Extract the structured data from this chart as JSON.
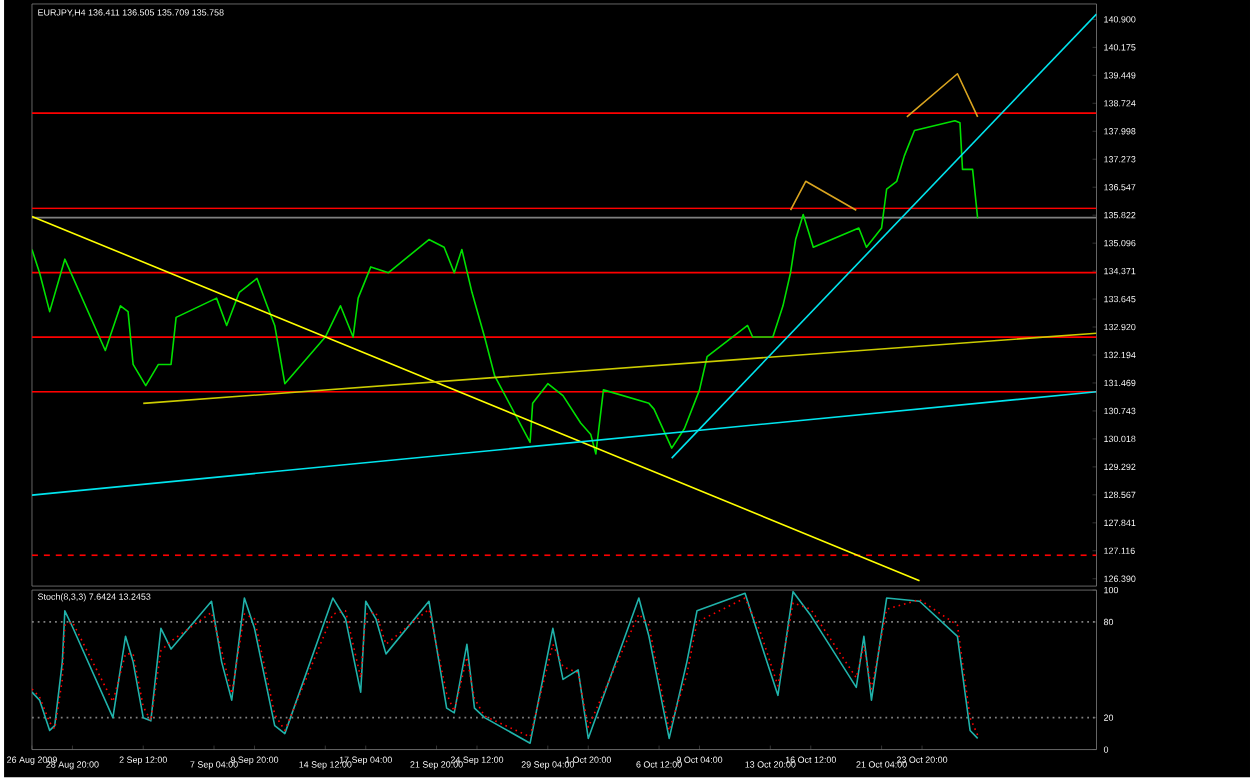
{
  "chart_data": [
    {
      "type": "line",
      "title": "EURJPY,H4 136.411 136.505 135.709 135.758",
      "xlim": [
        "2009-08-26T04:00",
        "2009-11-04T08:00"
      ],
      "ylim": [
        126.2,
        141.3
      ],
      "tick_labels": "y",
      "yticks": [
        {
          "value": 126.39,
          "label": "126.390"
        },
        {
          "value": 127.116,
          "label": "127.116"
        },
        {
          "value": 127.841,
          "label": "127.841"
        },
        {
          "value": 128.567,
          "label": "128.567"
        },
        {
          "value": 129.292,
          "label": "129.292"
        },
        {
          "value": 130.018,
          "label": "130.018"
        },
        {
          "value": 130.743,
          "label": "130.743"
        },
        {
          "value": 131.469,
          "label": "131.469"
        },
        {
          "value": 132.194,
          "label": "132.194"
        },
        {
          "value": 132.92,
          "label": "132.920"
        },
        {
          "value": 133.645,
          "label": "133.645"
        },
        {
          "value": 134.371,
          "label": "134.371"
        },
        {
          "value": 135.096,
          "label": "135.096"
        },
        {
          "value": 135.822,
          "label": "135.822"
        },
        {
          "value": 136.547,
          "label": "136.547"
        },
        {
          "value": 137.273,
          "label": "137.273"
        },
        {
          "value": 137.998,
          "label": "137.998"
        },
        {
          "value": 138.724,
          "label": "138.724"
        },
        {
          "value": 139.449,
          "label": "139.449"
        },
        {
          "value": 140.175,
          "label": "140.175"
        },
        {
          "value": 140.9,
          "label": "140.900"
        }
      ],
      "ref_lines": [
        {
          "axis": "y",
          "value": 138.47,
          "color": "#ff0000"
        },
        {
          "axis": "y",
          "value": 136.0,
          "color": "#ff0000"
        },
        {
          "axis": "y",
          "value": 134.33,
          "color": "#ff0000"
        },
        {
          "axis": "y",
          "value": 132.66,
          "color": "#ff0000"
        },
        {
          "axis": "y",
          "value": 131.24,
          "color": "#ff0000"
        },
        {
          "axis": "y",
          "value": 127.0,
          "color": "#ff0000",
          "line_style": "dashed"
        },
        {
          "axis": "y",
          "value": 135.76,
          "color": "#808080"
        }
      ],
      "series": [
        {
          "color": "#00e000",
          "x": [
            "2009-08-26T04:00",
            "2009-08-26T16:00",
            "2009-08-27T08:00",
            "2009-08-28T08:00",
            "2009-08-31T00:00",
            "2009-09-01T00:00",
            "2009-09-01T12:00",
            "2009-09-01T20:00",
            "2009-09-02T16:00",
            "2009-09-03T12:00",
            "2009-09-04T08:00",
            "2009-09-04T16:00",
            "2009-09-07T08:00",
            "2009-09-08T00:00",
            "2009-09-08T20:00",
            "2009-09-10T00:00",
            "2009-09-10T16:00",
            "2009-09-11T04:00",
            "2009-09-11T20:00",
            "2009-09-14T12:00",
            "2009-09-15T12:00",
            "2009-09-16T08:00",
            "2009-09-16T16:00",
            "2009-09-17T12:00",
            "2009-09-18T16:00",
            "2009-09-21T08:00",
            "2009-09-22T08:00",
            "2009-09-23T00:00",
            "2009-09-23T12:00",
            "2009-09-24T04:00",
            "2009-09-25T00:00",
            "2009-09-25T16:00",
            "2009-09-28T00:00",
            "2009-09-28T04:00",
            "2009-09-29T04:00",
            "2009-09-30T04:00",
            "2009-10-01T08:00",
            "2009-10-02T00:00",
            "2009-10-02T08:00",
            "2009-10-02T20:00",
            "2009-10-05T20:00",
            "2009-10-06T04:00",
            "2009-10-07T08:00",
            "2009-10-08T04:00",
            "2009-10-09T04:00",
            "2009-10-09T16:00",
            "2009-10-12T08:00",
            "2009-10-12T16:00",
            "2009-10-14T00:00",
            "2009-10-14T16:00",
            "2009-10-15T04:00",
            "2009-10-15T12:00",
            "2009-10-16T00:00",
            "2009-10-16T16:00",
            "2009-10-19T16:00",
            "2009-10-20T04:00",
            "2009-10-21T04:00",
            "2009-10-21T12:00",
            "2009-10-22T04:00",
            "2009-10-22T16:00",
            "2009-10-23T08:00",
            "2009-10-26T00:00",
            "2009-10-26T08:00",
            "2009-10-26T12:00",
            "2009-10-27T04:00",
            "2009-10-27T12:00"
          ],
          "values": [
            134.93,
            134.33,
            133.32,
            134.68,
            132.31,
            133.47,
            133.32,
            131.95,
            131.4,
            131.95,
            131.95,
            133.17,
            133.67,
            132.96,
            133.82,
            134.18,
            133.47,
            132.96,
            131.45,
            132.66,
            133.47,
            132.66,
            133.67,
            134.48,
            134.33,
            135.19,
            134.99,
            134.33,
            134.93,
            133.82,
            132.66,
            131.65,
            129.93,
            130.94,
            131.45,
            131.14,
            130.43,
            130.13,
            129.63,
            131.29,
            130.94,
            130.79,
            129.78,
            130.28,
            131.29,
            132.15,
            132.96,
            132.66,
            132.66,
            133.47,
            134.33,
            135.19,
            135.84,
            134.99,
            135.49,
            134.99,
            135.49,
            136.5,
            136.7,
            137.36,
            138.02,
            138.27,
            138.22,
            137.01,
            137.01,
            135.74
          ]
        },
        {
          "color": "#ffff00",
          "x": [
            "2009-08-26T04:00",
            "2009-10-23T16:00"
          ],
          "values": [
            135.79,
            126.34
          ]
        },
        {
          "color": "#cccc00",
          "x": [
            "2009-09-02T12:00",
            "2009-11-04T08:00"
          ],
          "values": [
            130.94,
            132.76
          ]
        },
        {
          "color": "#00e5ee",
          "x": [
            "2009-08-26T04:00",
            "2009-11-04T08:00"
          ],
          "values": [
            128.56,
            131.24
          ]
        },
        {
          "color": "#00e5ee",
          "x": [
            "2009-10-07T08:00",
            "2009-11-04T08:00"
          ],
          "values": [
            129.52,
            141.04
          ]
        },
        {
          "color": "#daa520",
          "x": [
            "2009-10-15T04:00",
            "2009-10-16T04:00",
            "2009-10-19T12:00"
          ],
          "values": [
            135.95,
            136.7,
            135.95
          ]
        },
        {
          "color": "#daa520",
          "x": [
            "2009-10-22T20:00",
            "2009-10-26T04:00",
            "2009-10-27T12:00"
          ],
          "values": [
            138.37,
            139.49,
            138.37
          ]
        }
      ]
    },
    {
      "type": "line",
      "title": "Stoch(8,3,3) 7.6424 13.2453",
      "xlim": [
        "2009-08-26T04:00",
        "2009-11-04T08:00"
      ],
      "ylim": [
        0,
        100
      ],
      "yticks": [
        0,
        20,
        80,
        100
      ],
      "xticks": [
        {
          "value": "2009-08-26T04:00",
          "label": "26 Aug 2009"
        },
        {
          "value": "2009-08-28T20:00",
          "label": "28 Aug 20:00"
        },
        {
          "value": "2009-09-02T12:00",
          "label": "2 Sep 12:00"
        },
        {
          "value": "2009-09-07T04:00",
          "label": "7 Sep 04:00"
        },
        {
          "value": "2009-09-09T20:00",
          "label": "9 Sep 20:00"
        },
        {
          "value": "2009-09-14T12:00",
          "label": "14 Sep 12:00"
        },
        {
          "value": "2009-09-17T04:00",
          "label": "17 Sep 04:00"
        },
        {
          "value": "2009-09-21T20:00",
          "label": "21 Sep 20:00"
        },
        {
          "value": "2009-09-24T12:00",
          "label": "24 Sep 12:00"
        },
        {
          "value": "2009-09-29T04:00",
          "label": "29 Sep 04:00"
        },
        {
          "value": "2009-10-01T20:00",
          "label": "1 Oct 20:00"
        },
        {
          "value": "2009-10-06T12:00",
          "label": "6 Oct 12:00"
        },
        {
          "value": "2009-10-09T04:00",
          "label": "9 Oct 04:00"
        },
        {
          "value": "2009-10-13T20:00",
          "label": "13 Oct 20:00"
        },
        {
          "value": "2009-10-16T12:00",
          "label": "16 Oct 12:00"
        },
        {
          "value": "2009-10-21T04:00",
          "label": "21 Oct 04:00"
        },
        {
          "value": "2009-10-23T20:00",
          "label": "23 Oct 20:00"
        }
      ],
      "ref_lines": [
        {
          "axis": "y",
          "value": 20,
          "color": "#808080",
          "line_style": "dotted"
        },
        {
          "axis": "y",
          "value": 80,
          "color": "#808080",
          "line_style": "dotted"
        }
      ],
      "series": [
        {
          "color": "#20b2aa",
          "x": [
            "2009-08-26T04:00",
            "2009-08-26T16:00",
            "2009-08-27T08:00",
            "2009-08-27T16:00",
            "2009-08-28T04:00",
            "2009-08-28T08:00",
            "2009-08-28T20:00",
            "2009-08-31T12:00",
            "2009-09-01T08:00",
            "2009-09-01T20:00",
            "2009-09-02T12:00",
            "2009-09-03T00:00",
            "2009-09-03T16:00",
            "2009-09-04T08:00",
            "2009-09-07T00:00",
            "2009-09-07T16:00",
            "2009-09-08T08:00",
            "2009-09-09T04:00",
            "2009-09-09T20:00",
            "2009-09-11T04:00",
            "2009-09-11T20:00",
            "2009-09-15T00:00",
            "2009-09-15T20:00",
            "2009-09-16T20:00",
            "2009-09-17T04:00",
            "2009-09-17T20:00",
            "2009-09-18T12:00",
            "2009-09-21T08:00",
            "2009-09-22T12:00",
            "2009-09-23T00:00",
            "2009-09-23T20:00",
            "2009-09-24T08:00",
            "2009-09-25T00:00",
            "2009-09-28T00:00",
            "2009-09-29T12:00",
            "2009-09-30T04:00",
            "2009-10-01T04:00",
            "2009-10-01T20:00",
            "2009-10-05T04:00",
            "2009-10-05T20:00",
            "2009-10-06T12:00",
            "2009-10-07T04:00",
            "2009-10-08T08:00",
            "2009-10-09T00:00",
            "2009-10-12T04:00",
            "2009-10-13T04:00",
            "2009-10-14T08:00",
            "2009-10-15T08:00",
            "2009-10-16T12:00",
            "2009-10-19T12:00",
            "2009-10-20T00:00",
            "2009-10-20T12:00",
            "2009-10-21T12:00",
            "2009-10-23T16:00",
            "2009-10-26T04:00",
            "2009-10-27T00:00",
            "2009-10-27T12:00"
          ],
          "values": [
            36,
            31,
            12,
            15,
            55,
            87,
            77,
            20,
            71,
            55,
            20,
            18,
            76,
            63,
            93,
            55,
            31,
            95,
            76,
            15,
            10,
            95,
            82,
            36,
            93,
            82,
            60,
            93,
            26,
            23,
            66,
            26,
            20,
            4,
            76,
            44,
            50,
            7,
            95,
            71,
            39,
            7,
            55,
            87,
            98,
            68,
            34,
            99,
            84,
            39,
            71,
            31,
            95,
            93,
            71,
            12,
            7
          ]
        },
        {
          "color": "#ff0000",
          "line_style": "dotted",
          "x": [
            "2009-08-26T04:00",
            "2009-08-26T16:00",
            "2009-08-27T08:00",
            "2009-08-27T16:00",
            "2009-08-28T04:00",
            "2009-08-28T08:00",
            "2009-08-28T20:00",
            "2009-08-31T12:00",
            "2009-09-01T08:00",
            "2009-09-01T20:00",
            "2009-09-02T12:00",
            "2009-09-03T00:00",
            "2009-09-03T16:00",
            "2009-09-04T08:00",
            "2009-09-07T00:00",
            "2009-09-07T16:00",
            "2009-09-08T08:00",
            "2009-09-09T04:00",
            "2009-09-09T20:00",
            "2009-09-11T04:00",
            "2009-09-11T20:00",
            "2009-09-15T00:00",
            "2009-09-15T20:00",
            "2009-09-16T20:00",
            "2009-09-17T04:00",
            "2009-09-17T20:00",
            "2009-09-18T12:00",
            "2009-09-21T08:00",
            "2009-09-22T12:00",
            "2009-09-23T00:00",
            "2009-09-23T20:00",
            "2009-09-24T08:00",
            "2009-09-25T00:00",
            "2009-09-28T00:00",
            "2009-09-29T12:00",
            "2009-09-30T04:00",
            "2009-10-01T04:00",
            "2009-10-01T20:00",
            "2009-10-05T04:00",
            "2009-10-05T20:00",
            "2009-10-06T12:00",
            "2009-10-07T04:00",
            "2009-10-08T08:00",
            "2009-10-09T00:00",
            "2009-10-12T04:00",
            "2009-10-13T04:00",
            "2009-10-14T08:00",
            "2009-10-15T08:00",
            "2009-10-16T12:00",
            "2009-10-19T12:00",
            "2009-10-20T00:00",
            "2009-10-20T12:00",
            "2009-10-21T12:00",
            "2009-10-23T16:00",
            "2009-10-26T04:00",
            "2009-10-27T00:00",
            "2009-10-27T12:00"
          ],
          "values": [
            38,
            33,
            17,
            13,
            44,
            78,
            80,
            30,
            60,
            60,
            27,
            18,
            62,
            68,
            86,
            62,
            35,
            85,
            82,
            22,
            12,
            85,
            87,
            45,
            85,
            86,
            66,
            88,
            35,
            24,
            58,
            32,
            21,
            8,
            66,
            52,
            48,
            14,
            85,
            78,
            45,
            12,
            47,
            80,
            95,
            74,
            40,
            92,
            88,
            45,
            65,
            38,
            88,
            94,
            78,
            20,
            9
          ]
        }
      ]
    }
  ]
}
